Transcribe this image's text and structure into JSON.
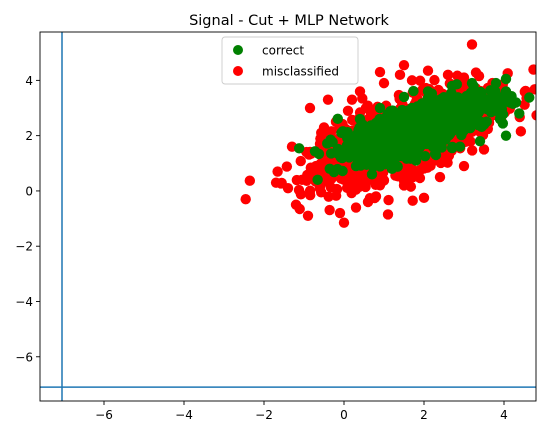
{
  "chart_data": {
    "type": "scatter",
    "title": "Signal - Cut + MLP Network",
    "xlabel": "",
    "ylabel": "",
    "xlim": [
      -7.6,
      4.8
    ],
    "ylim": [
      -7.6,
      5.75
    ],
    "xticks": [
      -6,
      -4,
      -2,
      0,
      2,
      4
    ],
    "yticks": [
      -6,
      -4,
      -2,
      0,
      2,
      4
    ],
    "xtick_labels": [
      "−6",
      "−4",
      "−2",
      "0",
      "2",
      "4"
    ],
    "ytick_labels": [
      "−6",
      "−4",
      "−2",
      "0",
      "2",
      "4"
    ],
    "grid": false,
    "legend": {
      "placement": "upper-center"
    },
    "reference_lines": {
      "vertical_x": -7.05,
      "horizontal_y": -7.1,
      "color": "#1f77b4"
    },
    "series": [
      {
        "name": "correct",
        "color": "#008000",
        "points": [
          [
            0.5,
            1.6
          ],
          [
            0.8,
            2.0
          ],
          [
            1.2,
            2.3
          ],
          [
            1.6,
            2.6
          ],
          [
            2.0,
            2.8
          ],
          [
            2.4,
            3.0
          ],
          [
            2.8,
            3.1
          ],
          [
            3.2,
            3.0
          ],
          [
            3.6,
            3.1
          ],
          [
            4.0,
            3.2
          ],
          [
            4.3,
            3.2
          ],
          [
            4.05,
            4.05
          ],
          [
            4.05,
            3.6
          ],
          [
            3.8,
            3.9
          ],
          [
            3.9,
            2.6
          ],
          [
            4.05,
            2.0
          ],
          [
            0.4,
            2.6
          ],
          [
            0.9,
            3.0
          ],
          [
            1.5,
            3.4
          ],
          [
            2.1,
            3.6
          ],
          [
            2.7,
            3.8
          ],
          [
            3.2,
            3.9
          ],
          [
            0.6,
            1.0
          ],
          [
            1.0,
            1.2
          ],
          [
            1.5,
            1.5
          ],
          [
            2.0,
            1.8
          ],
          [
            2.5,
            2.0
          ],
          [
            3.0,
            2.2
          ],
          [
            3.5,
            2.4
          ],
          [
            0.3,
            0.9
          ],
          [
            0.7,
            0.6
          ],
          [
            1.2,
            0.8
          ],
          [
            1.8,
            1.1
          ],
          [
            2.3,
            1.3
          ],
          [
            2.9,
            1.6
          ],
          [
            3.4,
            1.8
          ]
        ]
      },
      {
        "name": "misclassified",
        "color": "#ff0000",
        "points": [
          [
            -1.4,
            0.1
          ],
          [
            -1.3,
            1.6
          ],
          [
            -1.2,
            -0.5
          ],
          [
            -0.9,
            -0.9
          ],
          [
            -0.85,
            3.0
          ],
          [
            -0.4,
            3.3
          ],
          [
            -0.1,
            -0.8
          ],
          [
            0.0,
            -1.15
          ],
          [
            0.3,
            -0.6
          ],
          [
            0.9,
            4.3
          ],
          [
            1.5,
            4.55
          ],
          [
            2.1,
            4.35
          ],
          [
            3.2,
            5.3
          ],
          [
            1.1,
            -0.85
          ],
          [
            2.0,
            -0.25
          ],
          [
            0.0,
            0.4
          ],
          [
            -0.3,
            1.2
          ],
          [
            -0.5,
            2.1
          ],
          [
            0.1,
            2.9
          ],
          [
            0.4,
            3.6
          ],
          [
            1.0,
            3.9
          ],
          [
            2.6,
            4.2
          ],
          [
            3.0,
            4.1
          ],
          [
            -0.7,
            0.9
          ],
          [
            0.3,
            0.05
          ],
          [
            0.8,
            -0.2
          ],
          [
            1.5,
            0.2
          ],
          [
            2.4,
            0.5
          ],
          [
            3.0,
            0.9
          ],
          [
            3.5,
            1.5
          ],
          [
            -0.2,
            2.5
          ],
          [
            0.2,
            3.3
          ],
          [
            1.7,
            4.0
          ],
          [
            -0.6,
            1.7
          ],
          [
            0.6,
            -0.4
          ],
          [
            1.4,
            4.2
          ]
        ]
      }
    ]
  }
}
